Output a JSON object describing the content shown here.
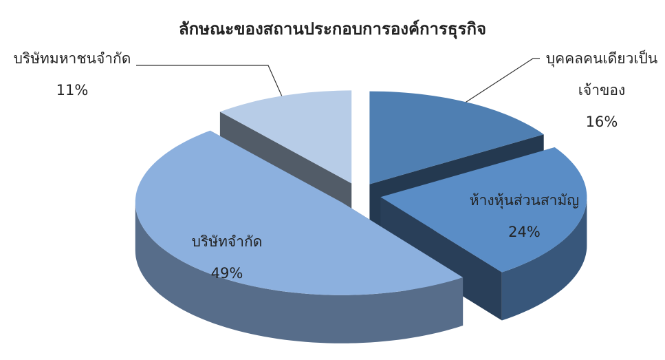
{
  "chart_data": {
    "type": "pie",
    "title": "ลักษณะของสถานประกอบการองค์การธุรกิจ",
    "categories": [
      "บุคคลคนเดียวเป็นเจ้าของ",
      "ห้างหุ้นส่วนสามัญ",
      "บริษัทจำกัด",
      "บริษัทมหาชนจำกัด"
    ],
    "values": [
      16,
      24,
      49,
      11
    ],
    "value_labels": [
      "16%",
      "24%",
      "49%",
      "11%"
    ],
    "colors": [
      "#4f7fb2",
      "#5a8dc6",
      "#8cb0de",
      "#b7cce7"
    ]
  }
}
